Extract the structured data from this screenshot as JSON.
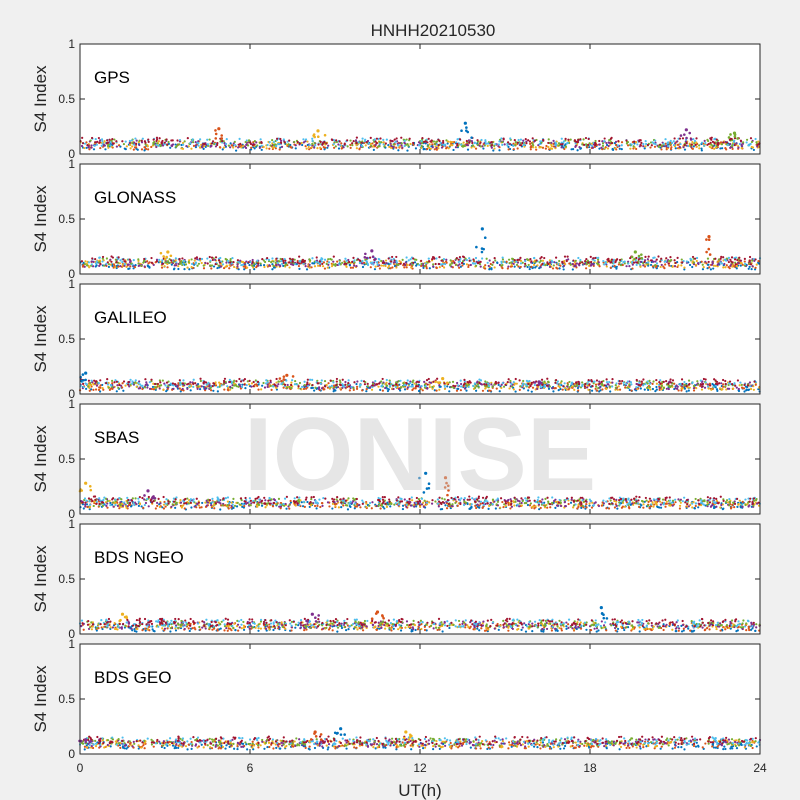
{
  "figure": {
    "title": "HNHH20210530",
    "xlabel": "UT(h)",
    "ylabel": "S4 Index",
    "watermark": "IONISE",
    "background": "#f0f0f0",
    "axes_background": "#ffffff"
  },
  "chart_data": {
    "type": "scatter",
    "title": "HNHH20210530",
    "xlabel": "UT(h)",
    "ylabel": "S4 Index",
    "xlim": [
      0,
      24
    ],
    "ylim": [
      0,
      1
    ],
    "xticks": [
      0,
      6,
      12,
      18,
      24
    ],
    "yticks": [
      0,
      0.5,
      1
    ],
    "grid": false,
    "series_colors": [
      "#0072BD",
      "#D95319",
      "#EDB120",
      "#7E2F8E",
      "#77AC30",
      "#4DBEEE",
      "#A2142F"
    ],
    "panels": [
      {
        "label": "GPS",
        "baseline": 0.09,
        "peaks": [
          {
            "x": 13.6,
            "y": 0.28
          },
          {
            "x": 4.9,
            "y": 0.23
          },
          {
            "x": 8.4,
            "y": 0.21
          },
          {
            "x": 21.4,
            "y": 0.22
          },
          {
            "x": 23.1,
            "y": 0.19
          }
        ]
      },
      {
        "label": "GLONASS",
        "baseline": 0.1,
        "peaks": [
          {
            "x": 14.2,
            "y": 0.41
          },
          {
            "x": 22.2,
            "y": 0.34
          },
          {
            "x": 3.1,
            "y": 0.2
          },
          {
            "x": 10.3,
            "y": 0.21
          },
          {
            "x": 19.6,
            "y": 0.2
          }
        ]
      },
      {
        "label": "GALILEO",
        "baseline": 0.08,
        "peaks": [
          {
            "x": 0.2,
            "y": 0.19
          },
          {
            "x": 7.3,
            "y": 0.17
          },
          {
            "x": 12.8,
            "y": 0.14
          },
          {
            "x": 16.2,
            "y": 0.11
          }
        ]
      },
      {
        "label": "SBAS",
        "baseline": 0.1,
        "peaks": [
          {
            "x": 12.2,
            "y": 0.37
          },
          {
            "x": 12.9,
            "y": 0.33
          },
          {
            "x": 0.2,
            "y": 0.28
          },
          {
            "x": 2.4,
            "y": 0.21
          }
        ]
      },
      {
        "label": "BDS NGEO",
        "baseline": 0.08,
        "peaks": [
          {
            "x": 18.4,
            "y": 0.24
          },
          {
            "x": 10.5,
            "y": 0.2
          },
          {
            "x": 1.5,
            "y": 0.18
          },
          {
            "x": 8.2,
            "y": 0.18
          }
        ]
      },
      {
        "label": "BDS GEO",
        "baseline": 0.1,
        "peaks": [
          {
            "x": 9.2,
            "y": 0.23
          },
          {
            "x": 8.3,
            "y": 0.2
          },
          {
            "x": 11.5,
            "y": 0.2
          },
          {
            "x": 0.2,
            "y": 0.13
          }
        ]
      }
    ]
  }
}
